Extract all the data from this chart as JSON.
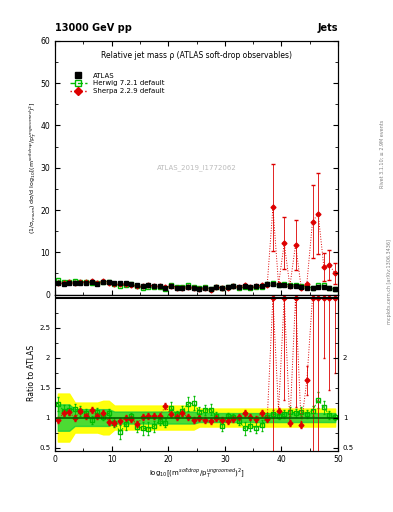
{
  "title_top": "13000 GeV pp",
  "title_right": "Jets",
  "plot_title": "Relative jet mass ρ (ATLAS soft-drop observables)",
  "watermark": "ATLAS_2019_I1772062",
  "ylabel_main": "(1/σ$_{resum}$) dσ/d log$_{10}$[(m$^{soft drop}$/p$_T^{ungroomed}$)$^2$]",
  "ylabel_ratio": "Ratio to ATLAS",
  "xlabel": "log$_{10}$[(m$^{soft drop}$/p$_T^{ungroomed}$)$^2$]",
  "right_label1": "Rivet 3.1.10; ≥ 2.9M events",
  "right_label2": "mcplots.cern.ch [arXiv:1306.3436]",
  "ylim_main": [
    0,
    60
  ],
  "ylim_ratio": [
    0.45,
    3.05
  ],
  "xlim": [
    0,
    50
  ],
  "yticks_main": [
    0,
    10,
    20,
    30,
    40,
    50,
    60
  ],
  "yticks_ratio_left": [
    0.5,
    1.0,
    1.5,
    2.0,
    2.5
  ],
  "yticks_ratio_right": [
    0.5,
    1.0,
    2.0
  ],
  "xticks": [
    0,
    10,
    20,
    30,
    40,
    50
  ],
  "legend_entries": [
    "ATLAS",
    "Herwig 7.2.1 default",
    "Sherpa 2.2.9 default"
  ],
  "atlas_color": "#000000",
  "herwig_color": "#00bb00",
  "sherpa_color": "#dd0000",
  "yellow_color": "#ffff00",
  "green_color": "#00cc44"
}
